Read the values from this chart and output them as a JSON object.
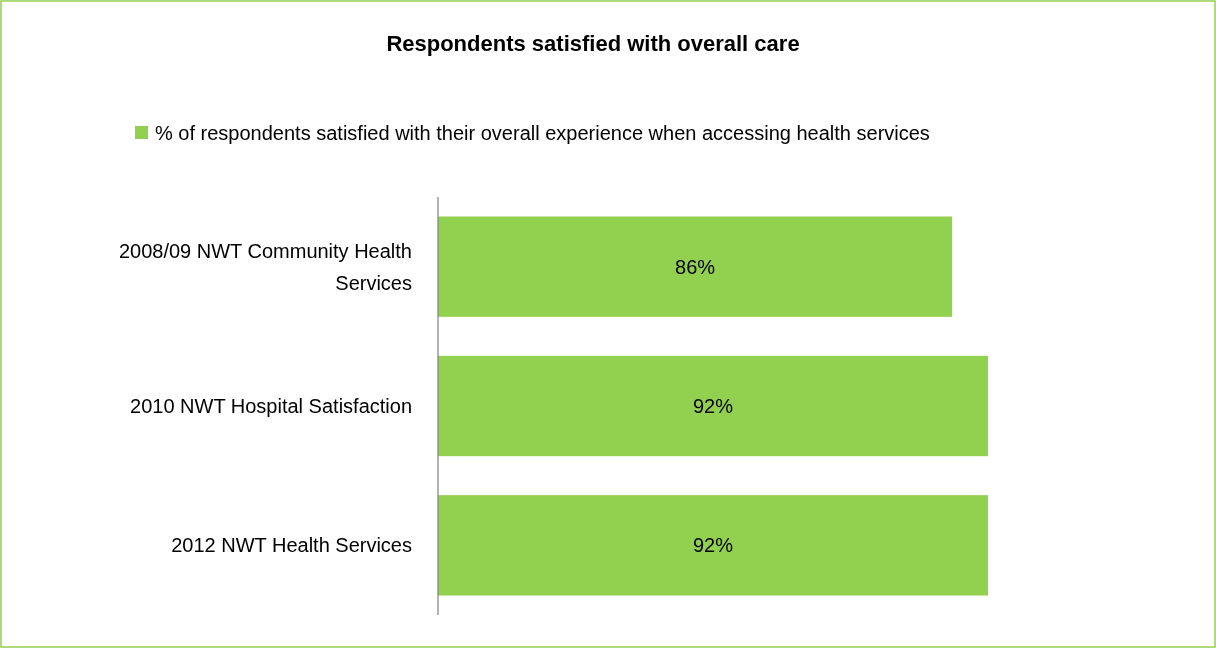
{
  "chart_data": {
    "type": "bar",
    "orientation": "horizontal",
    "title": "Respondents satisfied with overall care",
    "categories": [
      "2008/09 NWT Community Health Services",
      "2010 NWT Hospital Satisfaction",
      "2012 NWT Health Services"
    ],
    "series": [
      {
        "name": "% of respondents satisfied with their overall experience when accessing health services",
        "color": "#92d050",
        "values": [
          86,
          92,
          92
        ],
        "value_labels": [
          "86%",
          "92%",
          "92%"
        ]
      }
    ],
    "tick_labels": "y",
    "legend": "top"
  }
}
